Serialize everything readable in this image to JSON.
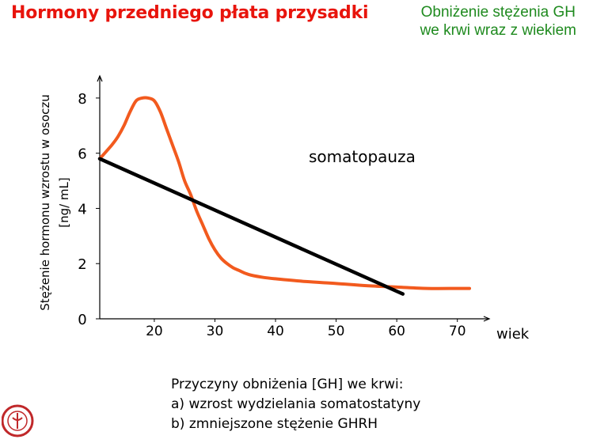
{
  "header": {
    "title": "Hormony przedniego płata przysadki",
    "subtitle_line1": "Obniżenie stężenia GH",
    "subtitle_line2": "we krwi wraz z wiekiem"
  },
  "chart_data": {
    "type": "line",
    "title": "",
    "xlabel": "wiek",
    "ylabel_line1": "Stężenie hormonu wzrostu w osoczu",
    "ylabel_line2": "[ng/ mL]",
    "annotation": "somatopauza",
    "xlim": [
      11,
      75
    ],
    "ylim": [
      0,
      8.8
    ],
    "x_ticks": [
      20,
      30,
      40,
      50,
      60,
      70
    ],
    "y_ticks": [
      0,
      2,
      4,
      6,
      8
    ],
    "grid": false,
    "series": [
      {
        "color": "#f25a1e",
        "x": [
          11,
          13,
          14,
          15,
          16,
          17,
          18,
          19,
          20,
          21,
          22,
          23,
          24,
          25,
          26,
          27,
          28,
          29,
          30,
          31,
          32,
          33,
          34,
          35,
          36,
          38,
          40,
          45,
          50,
          55,
          60,
          65,
          70,
          72
        ],
        "y": [
          5.8,
          6.3,
          6.6,
          7.0,
          7.5,
          7.9,
          8.0,
          8.0,
          7.9,
          7.5,
          6.9,
          6.3,
          5.7,
          5.0,
          4.5,
          3.9,
          3.4,
          2.9,
          2.5,
          2.2,
          2.0,
          1.85,
          1.75,
          1.65,
          1.58,
          1.5,
          1.45,
          1.35,
          1.28,
          1.2,
          1.15,
          1.1,
          1.1,
          1.1
        ]
      },
      {
        "color": "#000000",
        "x": [
          11,
          61
        ],
        "y": [
          5.8,
          0.9
        ]
      }
    ]
  },
  "footer": {
    "heading": "Przyczyny obniżenia [GH] we krwi:",
    "item_a": "a)  wzrost wydzielania somatostatyny",
    "item_b": "b)  zmniejszone stężenie GHRH"
  },
  "colors": {
    "title": "#e8140c",
    "subtitle": "#1e8a1e",
    "logo": "#c0282a"
  },
  "logo_icon": "university-seal-icon"
}
